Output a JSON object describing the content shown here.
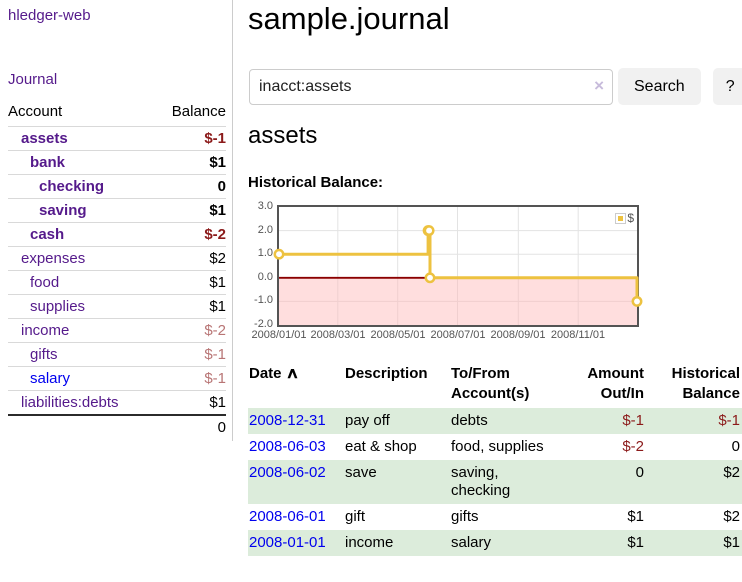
{
  "colors": {
    "link_purple": "#551A8B",
    "link_blue": "#0000EE",
    "negative_strong": "#8b1a1a",
    "negative_soft": "#b87575",
    "row_stripe_green": "#dcecdb",
    "series_gold": "#EDC240"
  },
  "sidebar": {
    "app_title": "hledger-web",
    "nav": {
      "journal_label": "Journal"
    },
    "accounts": {
      "col_account": "Account",
      "col_balance": "Balance",
      "rows": [
        {
          "label": "assets",
          "level": 1,
          "bold": true,
          "link": "purple",
          "balance": "$-1",
          "neg": "strong"
        },
        {
          "label": "bank",
          "level": 2,
          "bold": true,
          "link": "purple",
          "balance": "$1",
          "neg": ""
        },
        {
          "label": "checking",
          "level": 3,
          "bold": true,
          "link": "purple",
          "balance": "0",
          "neg": ""
        },
        {
          "label": "saving",
          "level": 3,
          "bold": true,
          "link": "purple",
          "balance": "$1",
          "neg": ""
        },
        {
          "label": "cash",
          "level": 2,
          "bold": true,
          "link": "purple",
          "balance": "$-2",
          "neg": "strong"
        },
        {
          "label": "expenses",
          "level": 1,
          "bold": false,
          "link": "purple",
          "balance": "$2",
          "neg": ""
        },
        {
          "label": "food",
          "level": 2,
          "bold": false,
          "link": "purple",
          "balance": "$1",
          "neg": ""
        },
        {
          "label": "supplies",
          "level": 2,
          "bold": false,
          "link": "purple",
          "balance": "$1",
          "neg": ""
        },
        {
          "label": "income",
          "level": 1,
          "bold": false,
          "link": "purple",
          "balance": "$-2",
          "neg": "soft"
        },
        {
          "label": "gifts",
          "level": 2,
          "bold": false,
          "link": "purple",
          "balance": "$-1",
          "neg": "soft"
        },
        {
          "label": "salary",
          "level": 2,
          "bold": false,
          "link": "blue",
          "balance": "$-1",
          "neg": "soft"
        },
        {
          "label": "liabilities:debts",
          "level": 1,
          "bold": false,
          "link": "purple",
          "balance": "$1",
          "neg": ""
        }
      ],
      "total": "0"
    }
  },
  "header": {
    "title": "sample.journal"
  },
  "search": {
    "query": "inacct:assets",
    "clear_icon": "×",
    "button_label": "Search",
    "help_label": "?"
  },
  "account_page": {
    "heading": "assets",
    "chart_title": "Historical Balance:"
  },
  "chart_data": {
    "type": "line",
    "step": true,
    "title": "Historical Balance:",
    "series": [
      {
        "name": "$",
        "color": "#EDC240",
        "points": [
          [
            "2008/01/01",
            1
          ],
          [
            "2008/06/01",
            2
          ],
          [
            "2008/06/02",
            2
          ],
          [
            "2008/06/03",
            0
          ],
          [
            "2008/12/31",
            -1
          ]
        ]
      }
    ],
    "xmin": "2008/01/01",
    "xmax": "2008/12/31",
    "xticks": [
      "2008/01/01",
      "2008/03/01",
      "2008/05/01",
      "2008/07/01",
      "2008/09/01",
      "2008/11/01"
    ],
    "yticks": [
      "3.0",
      "2.0",
      "1.0",
      "0.0",
      "-1.0",
      "-2.0"
    ],
    "ylim": [
      -2,
      3
    ],
    "grid": true,
    "legend": "$",
    "legend_position": "top-right",
    "negative_region_fill": "#ffb6b6",
    "zero_line_color": "#8b0000"
  },
  "register": {
    "columns": [
      "Date",
      "Description",
      "To/From Account(s)",
      "Amount Out/In",
      "Historical Balance"
    ],
    "sort_icon": "∧",
    "rows": [
      {
        "date": "2008-12-31",
        "description": "pay off",
        "accounts": "debts",
        "amount": "$-1",
        "amount_neg": true,
        "balance": "$-1",
        "balance_neg": true
      },
      {
        "date": "2008-06-03",
        "description": "eat & shop",
        "accounts": "food, supplies",
        "amount": "$-2",
        "amount_neg": true,
        "balance": "0",
        "balance_neg": false
      },
      {
        "date": "2008-06-02",
        "description": "save",
        "accounts": "saving, checking",
        "amount": "0",
        "amount_neg": false,
        "balance": "$2",
        "balance_neg": false
      },
      {
        "date": "2008-06-01",
        "description": "gift",
        "accounts": "gifts",
        "amount": "$1",
        "amount_neg": false,
        "balance": "$2",
        "balance_neg": false
      },
      {
        "date": "2008-01-01",
        "description": "income",
        "accounts": "salary",
        "amount": "$1",
        "amount_neg": false,
        "balance": "$1",
        "balance_neg": false
      }
    ]
  }
}
